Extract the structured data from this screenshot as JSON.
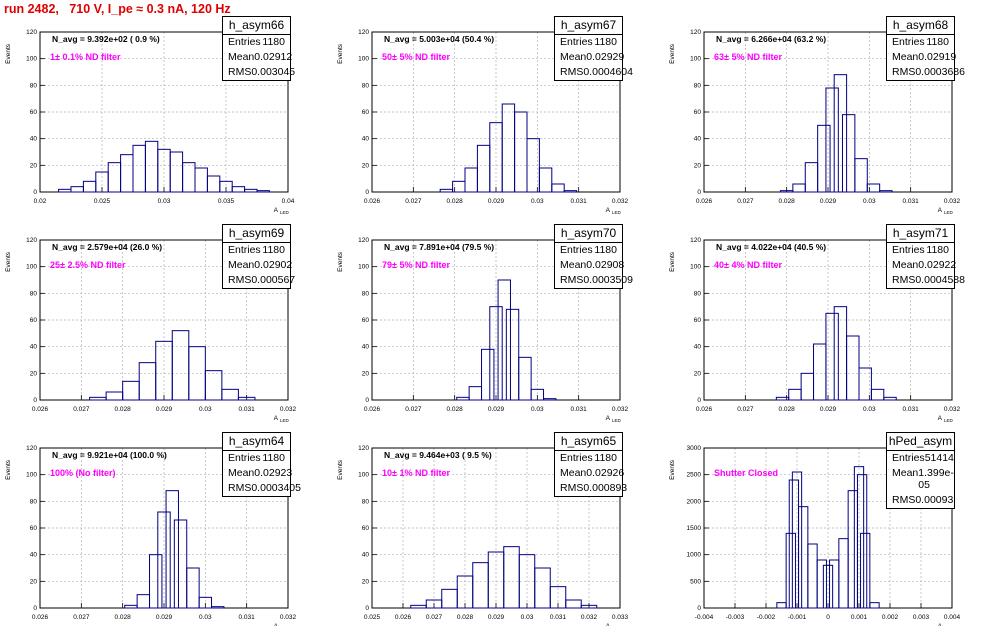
{
  "run_title": "run 2482,   710 V, I_pe ≈ 0.3 nA, 120 Hz",
  "ylabel": "Events",
  "xlabel": "A",
  "xlabel_sub": "LED",
  "colors": {
    "histogram": "#000080",
    "title": "#e00000",
    "filter_label": "#ff00ff"
  },
  "panels": [
    {
      "name": "h_asym66",
      "navg": "N_avg = 9.392e+02 ( 0.9 %)",
      "filter": "1± 0.1% ND filter",
      "stats": [
        [
          "Entries",
          "1180"
        ],
        [
          "Mean",
          "0.02912"
        ],
        [
          "RMS",
          "0.003045"
        ]
      ],
      "xlim": [
        0.02,
        0.04
      ],
      "ylim": [
        0,
        120
      ],
      "xticks": [
        "0.02",
        "0.025",
        "0.03",
        "0.035",
        "0.04"
      ],
      "yticks": [
        "0",
        "20",
        "40",
        "60",
        "80",
        "100",
        "120"
      ]
    },
    {
      "name": "h_asym67",
      "navg": "N_avg = 5.003e+04 (50.4 %)",
      "filter": "50± 5% ND filter",
      "stats": [
        [
          "Entries",
          "1180"
        ],
        [
          "Mean",
          "0.02929"
        ],
        [
          "RMS",
          "0.0004604"
        ]
      ],
      "xlim": [
        0.026,
        0.032
      ],
      "ylim": [
        0,
        120
      ],
      "xticks": [
        "0.026",
        "0.027",
        "0.028",
        "0.029",
        "0.03",
        "0.031",
        "0.032"
      ],
      "yticks": [
        "0",
        "20",
        "40",
        "60",
        "80",
        "100",
        "120"
      ]
    },
    {
      "name": "h_asym68",
      "navg": "N_avg = 6.266e+04 (63.2 %)",
      "filter": "63± 5% ND filter",
      "stats": [
        [
          "Entries",
          "1180"
        ],
        [
          "Mean",
          "0.02919"
        ],
        [
          "RMS",
          "0.0003686"
        ]
      ],
      "xlim": [
        0.026,
        0.032
      ],
      "ylim": [
        0,
        120
      ],
      "xticks": [
        "0.026",
        "0.027",
        "0.028",
        "0.029",
        "0.03",
        "0.031",
        "0.032"
      ],
      "yticks": [
        "0",
        "20",
        "40",
        "60",
        "80",
        "100",
        "120"
      ]
    },
    {
      "name": "h_asym69",
      "navg": "N_avg = 2.579e+04 (26.0 %)",
      "filter": "25± 2.5% ND filter",
      "stats": [
        [
          "Entries",
          "1180"
        ],
        [
          "Mean",
          "0.02902"
        ],
        [
          "RMS",
          "0.000567"
        ]
      ],
      "xlim": [
        0.026,
        0.032
      ],
      "ylim": [
        0,
        120
      ],
      "xticks": [
        "0.026",
        "0.027",
        "0.028",
        "0.029",
        "0.03",
        "0.031",
        "0.032"
      ],
      "yticks": [
        "0",
        "20",
        "40",
        "60",
        "80",
        "100",
        "120"
      ]
    },
    {
      "name": "h_asym70",
      "navg": "N_avg = 7.891e+04 (79.5 %)",
      "filter": "79± 5% ND filter",
      "stats": [
        [
          "Entries",
          "1180"
        ],
        [
          "Mean",
          "0.02908"
        ],
        [
          "RMS",
          "0.0003509"
        ]
      ],
      "xlim": [
        0.026,
        0.032
      ],
      "ylim": [
        0,
        120
      ],
      "xticks": [
        "0.026",
        "0.027",
        "0.028",
        "0.029",
        "0.03",
        "0.031",
        "0.032"
      ],
      "yticks": [
        "0",
        "20",
        "40",
        "60",
        "80",
        "100",
        "120"
      ]
    },
    {
      "name": "h_asym71",
      "navg": "N_avg = 4.022e+04 (40.5 %)",
      "filter": "40± 4% ND filter",
      "stats": [
        [
          "Entries",
          "1180"
        ],
        [
          "Mean",
          "0.02922"
        ],
        [
          "RMS",
          "0.0004588"
        ]
      ],
      "xlim": [
        0.026,
        0.032
      ],
      "ylim": [
        0,
        120
      ],
      "xticks": [
        "0.026",
        "0.027",
        "0.028",
        "0.029",
        "0.03",
        "0.031",
        "0.032"
      ],
      "yticks": [
        "0",
        "20",
        "40",
        "60",
        "80",
        "100",
        "120"
      ]
    },
    {
      "name": "h_asym64",
      "navg": "N_avg = 9.921e+04 (100.0 %)",
      "filter": "100% (No filter)",
      "stats": [
        [
          "Entries",
          "1180"
        ],
        [
          "Mean",
          "0.02923"
        ],
        [
          "RMS",
          "0.0003405"
        ]
      ],
      "xlim": [
        0.026,
        0.032
      ],
      "ylim": [
        0,
        120
      ],
      "xticks": [
        "0.026",
        "0.027",
        "0.028",
        "0.029",
        "0.03",
        "0.031",
        "0.032"
      ],
      "yticks": [
        "0",
        "20",
        "40",
        "60",
        "80",
        "100",
        "120"
      ]
    },
    {
      "name": "h_asym65",
      "navg": "N_avg = 9.464e+03 ( 9.5 %)",
      "filter": "10± 1% ND filter",
      "stats": [
        [
          "Entries",
          "1180"
        ],
        [
          "Mean",
          "0.02926"
        ],
        [
          "RMS",
          "0.000893"
        ]
      ],
      "xlim": [
        0.025,
        0.033
      ],
      "ylim": [
        0,
        120
      ],
      "xticks": [
        "0.025",
        "0.026",
        "0.027",
        "0.028",
        "0.029",
        "0.03",
        "0.031",
        "0.032",
        "0.033"
      ],
      "yticks": [
        "0",
        "20",
        "40",
        "60",
        "80",
        "100",
        "120"
      ]
    },
    {
      "name": "hPed_asym",
      "navg": "",
      "filter": "Shutter Closed",
      "stats": [
        [
          "Entries",
          "51414"
        ],
        [
          "Mean",
          "1.399e-05"
        ],
        [
          "RMS",
          "0.00093"
        ]
      ],
      "xlim": [
        -0.004,
        0.004
      ],
      "ylim": [
        0,
        3000
      ],
      "xticks": [
        "-0.004",
        "-0.003",
        "-0.002",
        "-0.001",
        "0",
        "0.001",
        "0.002",
        "0.003",
        "0.004"
      ],
      "yticks": [
        "0",
        "500",
        "1000",
        "1500",
        "2000",
        "2500",
        "3000"
      ]
    }
  ],
  "chart_data": [
    {
      "type": "bar",
      "title": "h_asym66",
      "xlabel": "A",
      "ylabel": "Events",
      "xlim": [
        0.02,
        0.04
      ],
      "ylim": [
        0,
        120
      ],
      "grid": true,
      "x": [
        0.021,
        0.022,
        0.023,
        0.024,
        0.025,
        0.026,
        0.027,
        0.028,
        0.029,
        0.03,
        0.031,
        0.032,
        0.033,
        0.034,
        0.035,
        0.036,
        0.037,
        0.038
      ],
      "values": [
        0,
        2,
        4,
        8,
        15,
        22,
        28,
        35,
        38,
        32,
        30,
        22,
        18,
        12,
        8,
        4,
        2,
        1
      ]
    },
    {
      "type": "bar",
      "title": "h_asym67",
      "xlabel": "A",
      "ylabel": "Events",
      "xlim": [
        0.026,
        0.032
      ],
      "ylim": [
        0,
        120
      ],
      "grid": true,
      "x": [
        0.0278,
        0.0281,
        0.0284,
        0.0287,
        0.029,
        0.0293,
        0.0296,
        0.0299,
        0.0302,
        0.0305,
        0.0308
      ],
      "values": [
        2,
        8,
        18,
        35,
        52,
        66,
        60,
        40,
        18,
        6,
        1
      ]
    },
    {
      "type": "bar",
      "title": "h_asym68",
      "xlabel": "A",
      "ylabel": "Events",
      "xlim": [
        0.026,
        0.032
      ],
      "ylim": [
        0,
        120
      ],
      "grid": true,
      "x": [
        0.028,
        0.0283,
        0.0286,
        0.0289,
        0.0291,
        0.0293,
        0.0295,
        0.0298,
        0.0301,
        0.0304
      ],
      "values": [
        1,
        6,
        22,
        50,
        78,
        88,
        58,
        25,
        6,
        1
      ]
    },
    {
      "type": "bar",
      "title": "h_asym69",
      "xlabel": "A",
      "ylabel": "Events",
      "xlim": [
        0.026,
        0.032
      ],
      "ylim": [
        0,
        120
      ],
      "grid": true,
      "x": [
        0.0274,
        0.0278,
        0.0282,
        0.0286,
        0.029,
        0.0294,
        0.0298,
        0.0302,
        0.0306,
        0.031
      ],
      "values": [
        2,
        6,
        14,
        28,
        44,
        52,
        40,
        22,
        8,
        2
      ]
    },
    {
      "type": "bar",
      "title": "h_asym70",
      "xlabel": "A",
      "ylabel": "Events",
      "xlim": [
        0.026,
        0.032
      ],
      "ylim": [
        0,
        120
      ],
      "grid": true,
      "x": [
        0.0282,
        0.0285,
        0.0288,
        0.029,
        0.0292,
        0.0294,
        0.0297,
        0.03,
        0.0303
      ],
      "values": [
        2,
        10,
        38,
        70,
        90,
        68,
        32,
        8,
        1
      ]
    },
    {
      "type": "bar",
      "title": "h_asym71",
      "xlabel": "A",
      "ylabel": "Events",
      "xlim": [
        0.026,
        0.032
      ],
      "ylim": [
        0,
        120
      ],
      "grid": true,
      "x": [
        0.0279,
        0.0282,
        0.0285,
        0.0288,
        0.0291,
        0.0293,
        0.0296,
        0.0299,
        0.0302,
        0.0305
      ],
      "values": [
        2,
        8,
        20,
        42,
        65,
        70,
        48,
        24,
        8,
        2
      ]
    },
    {
      "type": "bar",
      "title": "h_asym64",
      "xlabel": "A",
      "ylabel": "Events",
      "xlim": [
        0.026,
        0.032
      ],
      "ylim": [
        0,
        120
      ],
      "grid": true,
      "x": [
        0.0282,
        0.0285,
        0.0288,
        0.029,
        0.0292,
        0.0294,
        0.0297,
        0.03,
        0.0303
      ],
      "values": [
        2,
        10,
        40,
        72,
        88,
        66,
        30,
        8,
        1
      ]
    },
    {
      "type": "bar",
      "title": "h_asym65",
      "xlabel": "A",
      "ylabel": "Events",
      "xlim": [
        0.025,
        0.033
      ],
      "ylim": [
        0,
        120
      ],
      "grid": true,
      "x": [
        0.0265,
        0.027,
        0.0275,
        0.028,
        0.0285,
        0.029,
        0.0295,
        0.03,
        0.0305,
        0.031,
        0.0315,
        0.032
      ],
      "values": [
        2,
        6,
        14,
        24,
        34,
        42,
        46,
        40,
        30,
        16,
        6,
        2
      ]
    },
    {
      "type": "bar",
      "title": "hPed_asym",
      "xlabel": "A",
      "ylabel": "Events",
      "xlim": [
        -0.004,
        0.004
      ],
      "ylim": [
        0,
        3000
      ],
      "grid": true,
      "x": [
        -0.0015,
        -0.0012,
        -0.0011,
        -0.001,
        -0.0008,
        -0.0005,
        -0.0002,
        0.0,
        0.0002,
        0.0005,
        0.0008,
        0.001,
        0.0011,
        0.0012,
        0.0015
      ],
      "values": [
        100,
        1400,
        2400,
        2550,
        1900,
        1200,
        900,
        800,
        900,
        1300,
        2200,
        2650,
        2500,
        1400,
        100
      ]
    }
  ]
}
